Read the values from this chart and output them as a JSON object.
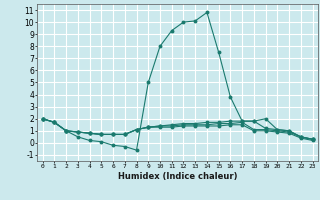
{
  "xlabel": "Humidex (Indice chaleur)",
  "background_color": "#cce9ed",
  "grid_color": "#ffffff",
  "line_color": "#1a7a6e",
  "xlim": [
    -0.5,
    23.5
  ],
  "ylim": [
    -1.5,
    11.5
  ],
  "x_ticks": [
    0,
    1,
    2,
    3,
    4,
    5,
    6,
    7,
    8,
    9,
    10,
    11,
    12,
    13,
    14,
    15,
    16,
    17,
    18,
    19,
    20,
    21,
    22,
    23
  ],
  "y_ticks": [
    -1,
    0,
    1,
    2,
    3,
    4,
    5,
    6,
    7,
    8,
    9,
    10,
    11
  ],
  "series": [
    [
      2.0,
      1.7,
      1.0,
      0.5,
      0.2,
      0.1,
      -0.2,
      -0.3,
      -0.6,
      5.0,
      8.0,
      9.3,
      10.0,
      10.1,
      10.8,
      7.5,
      3.8,
      1.8,
      1.8,
      2.0,
      1.1,
      1.0,
      0.5,
      0.3
    ],
    [
      2.0,
      1.7,
      1.0,
      0.9,
      0.8,
      0.7,
      0.7,
      0.7,
      1.1,
      1.3,
      1.4,
      1.5,
      1.6,
      1.6,
      1.7,
      1.7,
      1.8,
      1.8,
      1.8,
      1.2,
      1.1,
      1.0,
      0.5,
      0.3
    ],
    [
      2.0,
      1.7,
      1.0,
      0.9,
      0.8,
      0.7,
      0.7,
      0.7,
      1.1,
      1.3,
      1.4,
      1.4,
      1.5,
      1.5,
      1.5,
      1.6,
      1.6,
      1.7,
      1.1,
      1.1,
      1.0,
      0.9,
      0.5,
      0.3
    ],
    [
      2.0,
      1.7,
      1.0,
      0.9,
      0.8,
      0.7,
      0.7,
      0.7,
      1.1,
      1.3,
      1.3,
      1.3,
      1.4,
      1.4,
      1.4,
      1.4,
      1.5,
      1.5,
      1.0,
      1.0,
      0.9,
      0.8,
      0.4,
      0.2
    ]
  ]
}
